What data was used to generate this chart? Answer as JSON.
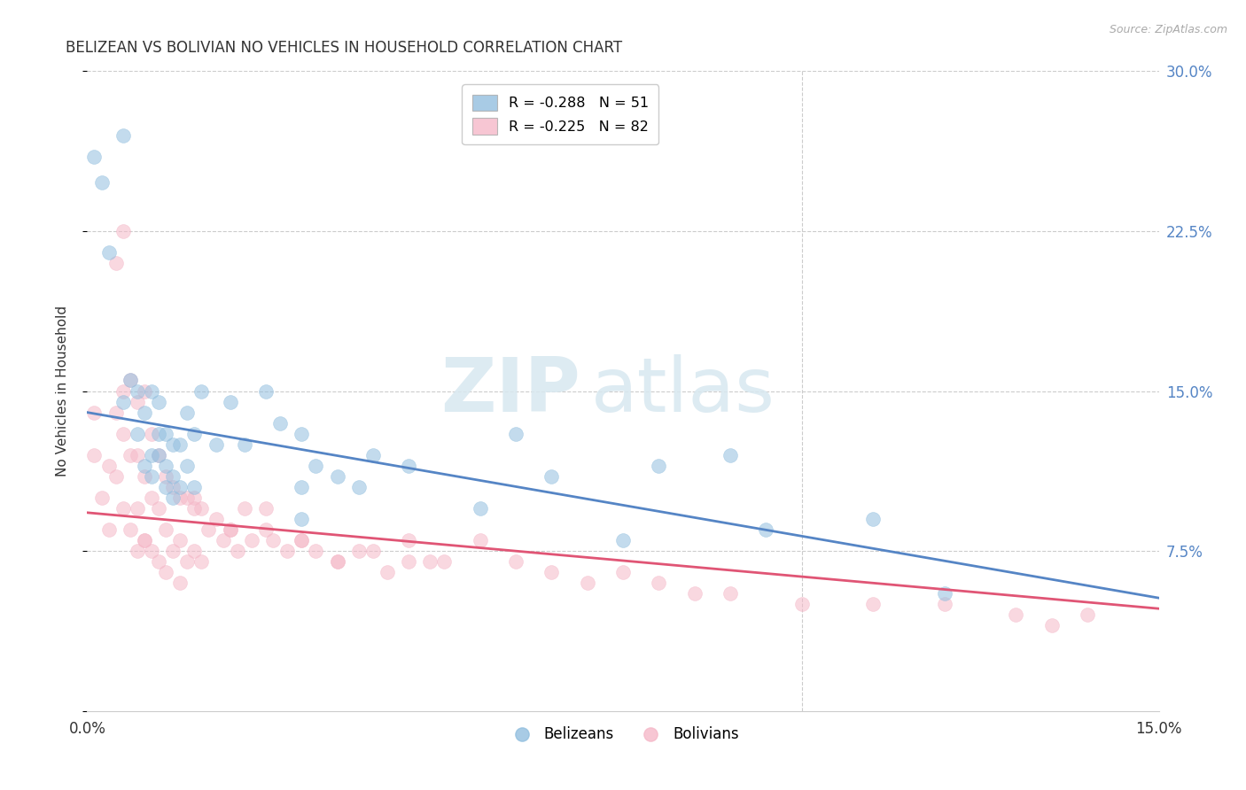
{
  "title": "BELIZEAN VS BOLIVIAN NO VEHICLES IN HOUSEHOLD CORRELATION CHART",
  "source": "Source: ZipAtlas.com",
  "ylabel": "No Vehicles in Household",
  "xlim": [
    0.0,
    0.15
  ],
  "ylim": [
    0.0,
    0.3
  ],
  "blue_color": "#92bfdf",
  "pink_color": "#f5b8c8",
  "blue_line_color": "#5585c5",
  "pink_line_color": "#e05575",
  "legend_blue_label": "R = -0.288   N = 51",
  "legend_pink_label": "R = -0.225   N = 82",
  "watermark_zip": "ZIP",
  "watermark_atlas": "atlas",
  "blue_trendline": [
    0.14,
    0.053
  ],
  "pink_trendline": [
    0.093,
    0.048
  ],
  "belizean_x": [
    0.001,
    0.002,
    0.003,
    0.005,
    0.005,
    0.006,
    0.007,
    0.007,
    0.008,
    0.008,
    0.009,
    0.009,
    0.009,
    0.01,
    0.01,
    0.01,
    0.011,
    0.011,
    0.011,
    0.012,
    0.012,
    0.012,
    0.013,
    0.013,
    0.014,
    0.014,
    0.015,
    0.015,
    0.016,
    0.018,
    0.02,
    0.022,
    0.025,
    0.027,
    0.03,
    0.03,
    0.032,
    0.035,
    0.038,
    0.04,
    0.045,
    0.055,
    0.06,
    0.065,
    0.075,
    0.08,
    0.09,
    0.095,
    0.11,
    0.12,
    0.03
  ],
  "belizean_y": [
    0.26,
    0.248,
    0.215,
    0.27,
    0.145,
    0.155,
    0.15,
    0.13,
    0.14,
    0.115,
    0.15,
    0.12,
    0.11,
    0.145,
    0.13,
    0.12,
    0.13,
    0.115,
    0.105,
    0.125,
    0.11,
    0.1,
    0.125,
    0.105,
    0.14,
    0.115,
    0.13,
    0.105,
    0.15,
    0.125,
    0.145,
    0.125,
    0.15,
    0.135,
    0.13,
    0.105,
    0.115,
    0.11,
    0.105,
    0.12,
    0.115,
    0.095,
    0.13,
    0.11,
    0.08,
    0.115,
    0.12,
    0.085,
    0.09,
    0.055,
    0.09
  ],
  "bolivian_x": [
    0.001,
    0.001,
    0.002,
    0.003,
    0.003,
    0.004,
    0.004,
    0.005,
    0.005,
    0.005,
    0.006,
    0.006,
    0.006,
    0.007,
    0.007,
    0.007,
    0.007,
    0.008,
    0.008,
    0.008,
    0.009,
    0.009,
    0.009,
    0.01,
    0.01,
    0.01,
    0.011,
    0.011,
    0.011,
    0.012,
    0.012,
    0.013,
    0.013,
    0.013,
    0.014,
    0.014,
    0.015,
    0.015,
    0.016,
    0.016,
    0.017,
    0.018,
    0.019,
    0.02,
    0.021,
    0.022,
    0.023,
    0.025,
    0.026,
    0.028,
    0.03,
    0.032,
    0.035,
    0.038,
    0.04,
    0.042,
    0.045,
    0.048,
    0.05,
    0.055,
    0.06,
    0.065,
    0.07,
    0.075,
    0.08,
    0.085,
    0.09,
    0.1,
    0.11,
    0.12,
    0.13,
    0.135,
    0.14,
    0.025,
    0.03,
    0.02,
    0.015,
    0.035,
    0.045,
    0.008,
    0.005,
    0.004
  ],
  "bolivian_y": [
    0.14,
    0.12,
    0.1,
    0.115,
    0.085,
    0.14,
    0.11,
    0.15,
    0.13,
    0.095,
    0.155,
    0.12,
    0.085,
    0.145,
    0.12,
    0.095,
    0.075,
    0.15,
    0.11,
    0.08,
    0.13,
    0.1,
    0.075,
    0.12,
    0.095,
    0.07,
    0.11,
    0.085,
    0.065,
    0.105,
    0.075,
    0.1,
    0.08,
    0.06,
    0.1,
    0.07,
    0.1,
    0.075,
    0.095,
    0.07,
    0.085,
    0.09,
    0.08,
    0.085,
    0.075,
    0.095,
    0.08,
    0.085,
    0.08,
    0.075,
    0.08,
    0.075,
    0.07,
    0.075,
    0.075,
    0.065,
    0.08,
    0.07,
    0.07,
    0.08,
    0.07,
    0.065,
    0.06,
    0.065,
    0.06,
    0.055,
    0.055,
    0.05,
    0.05,
    0.05,
    0.045,
    0.04,
    0.045,
    0.095,
    0.08,
    0.085,
    0.095,
    0.07,
    0.07,
    0.08,
    0.225,
    0.21
  ]
}
